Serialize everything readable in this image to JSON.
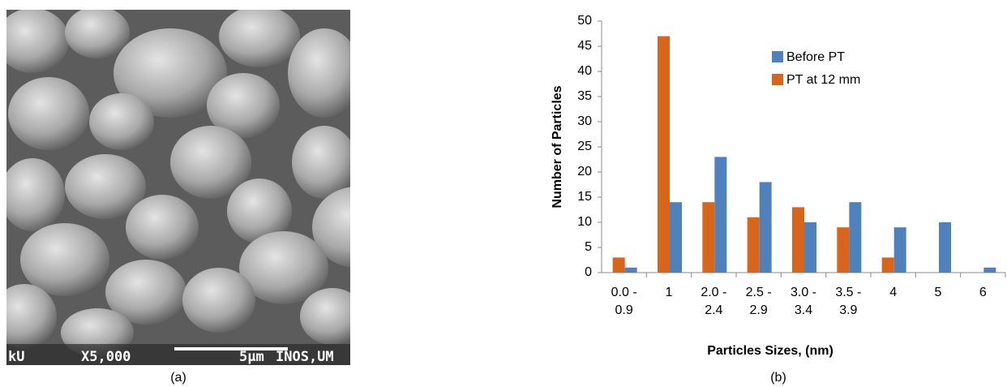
{
  "image": {
    "overlay": [
      "kU",
      "X5,000",
      "5µm",
      "INOS,UM"
    ],
    "caption": "(a)"
  },
  "chart_data": {
    "type": "bar",
    "caption": "(b)",
    "xlabel": "Particles Sizes, (nm)",
    "ylabel": "Number of Particles",
    "categories": [
      "0.0 - 0.9",
      "1",
      "2.0 - 2.4",
      "2.5 - 2.9",
      "3.0 - 3.4",
      "3.5 - 3.9",
      "4",
      "5",
      "6"
    ],
    "series": [
      {
        "name": "Before PT",
        "color": "#4f81bd",
        "values": [
          1,
          14,
          23,
          18,
          10,
          14,
          9,
          10,
          1
        ]
      },
      {
        "name": "PT at 12 mm",
        "color": "#d9651a",
        "values": [
          3,
          47,
          14,
          11,
          13,
          9,
          3,
          0,
          0
        ]
      }
    ],
    "ylim": [
      0,
      50
    ],
    "yticks": [
      0,
      5,
      10,
      15,
      20,
      25,
      30,
      35,
      40,
      45,
      50
    ],
    "grid": false,
    "legend": "top"
  }
}
